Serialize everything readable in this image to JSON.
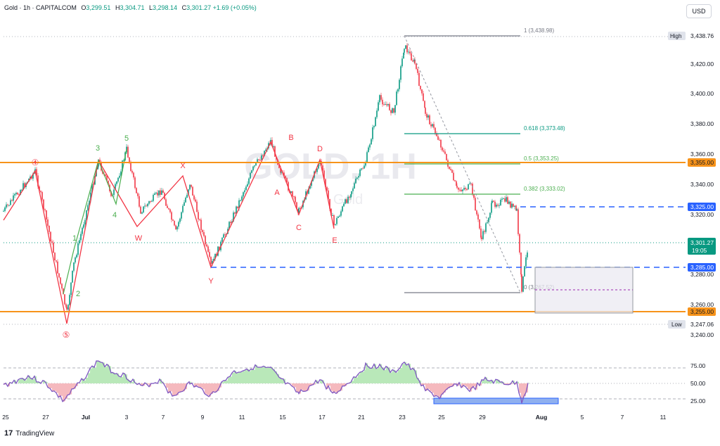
{
  "header": {
    "symbol": "Gold · 1h · CAPITALCOM",
    "open_label": "O",
    "open": "3,299.51",
    "high_label": "H",
    "high": "3,304.71",
    "low_label": "L",
    "low": "3,298.14",
    "close_label": "C",
    "close": "3,301.27",
    "change": "+1.69 (+0.05%)"
  },
  "currency_button": "USD",
  "footer": {
    "logo_icon": "tradingview-logo-icon",
    "brand": "TradingView",
    "logo_glyph": "17"
  },
  "watermark": {
    "title": "GOLD, 1H",
    "subtitle": "Gold"
  },
  "price_axis": {
    "ticks": [
      "3,420.00",
      "3,400.00",
      "3,380.00",
      "3,360.00",
      "3,340.00",
      "3,320.00",
      "3,280.00",
      "3,260.00",
      "3,240.00"
    ],
    "high_tag": "High",
    "high_value": "3,438.76",
    "low_tag": "Low",
    "low_value": "3,247.06",
    "badges": [
      {
        "text": "3,355.00",
        "color": "#f7931a"
      },
      {
        "text": "3,325.00",
        "color": "#2962ff"
      },
      {
        "text": "3,285.00",
        "color": "#2962ff"
      },
      {
        "text": "3,255.00",
        "color": "#f7931a"
      }
    ],
    "last_price": "3,301.27",
    "countdown": "19:05",
    "last_color": "#089981"
  },
  "time_axis": {
    "ticks": [
      "25",
      "27",
      "Jul",
      "3",
      "7",
      "9",
      "11",
      "15",
      "17",
      "21",
      "23",
      "25",
      "29",
      "Aug",
      "5",
      "7",
      "11"
    ]
  },
  "rsi_axis": {
    "ticks": [
      "75.00",
      "50.00",
      "25.00"
    ]
  },
  "fib_labels": [
    {
      "text": "1 (3,438.98)",
      "color": "#787b86"
    },
    {
      "text": "0.618 (3,373.48)",
      "color": "#089981"
    },
    {
      "text": "0.5 (3,353.25)",
      "color": "#4caf50"
    },
    {
      "text": "0.382 (3,333.02)",
      "color": "#4caf50"
    },
    {
      "text": "0 (3,267.52)",
      "color": "#787b86"
    }
  ],
  "wave_labels": [
    {
      "text": "④",
      "color": "#f23645"
    },
    {
      "text": "3",
      "color": "#4caf50"
    },
    {
      "text": "5",
      "color": "#4caf50"
    },
    {
      "text": "4",
      "color": "#4caf50"
    },
    {
      "text": "1",
      "color": "#4caf50"
    },
    {
      "text": "2",
      "color": "#4caf50"
    },
    {
      "text": "⑤",
      "color": "#f23645"
    },
    {
      "text": "X",
      "color": "#f23645"
    },
    {
      "text": "W",
      "color": "#f23645"
    },
    {
      "text": "Y",
      "color": "#f23645"
    },
    {
      "text": "B",
      "color": "#f23645"
    },
    {
      "text": "D",
      "color": "#f23645"
    },
    {
      "text": "A",
      "color": "#f23645"
    },
    {
      "text": "C",
      "color": "#f23645"
    },
    {
      "text": "E",
      "color": "#f23645"
    }
  ],
  "colors": {
    "up": "#089981",
    "down": "#f23645",
    "orange": "#f7931a",
    "blue": "#2962ff",
    "rsi": "#7e57c2"
  }
}
